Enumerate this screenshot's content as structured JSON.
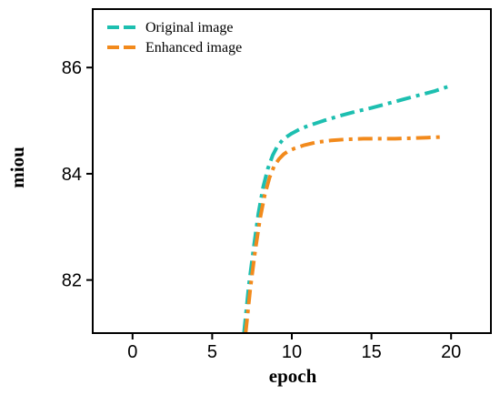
{
  "chart_data": {
    "type": "line",
    "title": "",
    "xlabel": "epoch",
    "ylabel": "miou",
    "xlim": [
      -2.5,
      22.5
    ],
    "ylim": [
      81.0,
      87.1
    ],
    "xticks": [
      0,
      5,
      10,
      15,
      20
    ],
    "xtick_labels": [
      "0",
      "5",
      "10",
      "15",
      "20"
    ],
    "yticks": [
      82,
      84,
      86
    ],
    "ytick_labels": [
      "82",
      "84",
      "86"
    ],
    "grid": false,
    "legend_position": "top-left",
    "series": [
      {
        "name": "Original image",
        "color": "#1dbfb0",
        "line_style": "dash-dot",
        "x": [
          7.0,
          7.3,
          7.6,
          7.9,
          8.2,
          8.5,
          8.8,
          9.1,
          9.4,
          9.7,
          10.0,
          10.5,
          11.0,
          12.0,
          13.0,
          14.0,
          15.0,
          16.0,
          17.0,
          18.0,
          19.0,
          20.0
        ],
        "y": [
          81.0,
          81.9,
          82.6,
          83.25,
          83.75,
          84.1,
          84.35,
          84.52,
          84.63,
          84.7,
          84.76,
          84.84,
          84.9,
          85.0,
          85.09,
          85.17,
          85.24,
          85.32,
          85.4,
          85.48,
          85.56,
          85.66
        ]
      },
      {
        "name": "Enhanced image",
        "color": "#f28a1c",
        "line_style": "dash-dot",
        "x": [
          7.1,
          7.4,
          7.7,
          8.0,
          8.3,
          8.6,
          8.9,
          9.2,
          9.5,
          9.8,
          10.2,
          10.8,
          11.5,
          12.5,
          13.5,
          14.5,
          15.5,
          16.5,
          17.5,
          18.5,
          19.3
        ],
        "y": [
          81.0,
          81.85,
          82.55,
          83.15,
          83.6,
          83.93,
          84.15,
          84.28,
          84.37,
          84.43,
          84.48,
          84.54,
          84.59,
          84.63,
          84.65,
          84.66,
          84.66,
          84.66,
          84.67,
          84.68,
          84.69
        ]
      }
    ]
  }
}
